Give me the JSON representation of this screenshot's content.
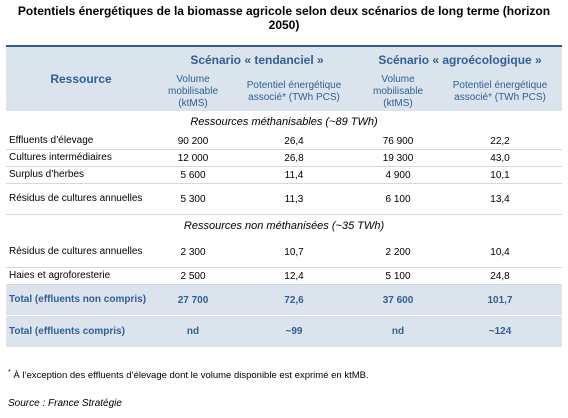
{
  "title": "Potentiels énergétiques de la biomasse agricole selon deux scénarios de long terme (horizon 2050)",
  "header": {
    "ressource": "Ressource",
    "scenario1": "Scénario « tendanciel »",
    "scenario2": "Scénario « agroécologique »",
    "volume": "Volume mobilisable (ktMS)",
    "potentiel": "Potentiel énergétique associé* (TWh PCS)"
  },
  "sections": {
    "methanisables": "Ressources méthanisables (~89 TWh)",
    "non_methanisees": "Ressources non méthanisées (~35 TWh)"
  },
  "rows_methanisables": [
    {
      "label": "Effluents d’élevage",
      "v1": "90 200",
      "p1": "26,4",
      "v2": "76 900",
      "p2": "22,2"
    },
    {
      "label": "Cultures intermédiaires",
      "v1": "12 000",
      "p1": "26,8",
      "v2": "19 300",
      "p2": "43,0"
    },
    {
      "label": "Surplus d’herbes",
      "v1": "5 600",
      "p1": "11,4",
      "v2": "4 900",
      "p2": "10,1"
    },
    {
      "label": "Résidus de cultures annuelles",
      "v1": "5 300",
      "p1": "11,3",
      "v2": "6 100",
      "p2": "13,4"
    }
  ],
  "rows_non_methanisees": [
    {
      "label": "Résidus de cultures annuelles",
      "v1": "2 300",
      "p1": "10,7",
      "v2": "2 200",
      "p2": "10,4"
    },
    {
      "label": "Haies et agroforesterie",
      "v1": "2 500",
      "p1": "12,4",
      "v2": "5 100",
      "p2": "24,8"
    }
  ],
  "totals": [
    {
      "label": "Total (effluents non compris)",
      "v1": "27 700",
      "p1": "72,6",
      "v2": "37 600",
      "p2": "101,7"
    },
    {
      "label": "Total (effluents compris)",
      "v1": "nd",
      "p1": "~99",
      "v2": "nd",
      "p2": "~124"
    }
  ],
  "footnote_marker": "*",
  "footnote": "À l’exception des effluents d’élevage dont le volume disponible est exprimé en ktMB.",
  "source": "Source : France Stratégie",
  "colors": {
    "header_text": "#2f5f97",
    "header_bg": "#dbe3ec"
  }
}
